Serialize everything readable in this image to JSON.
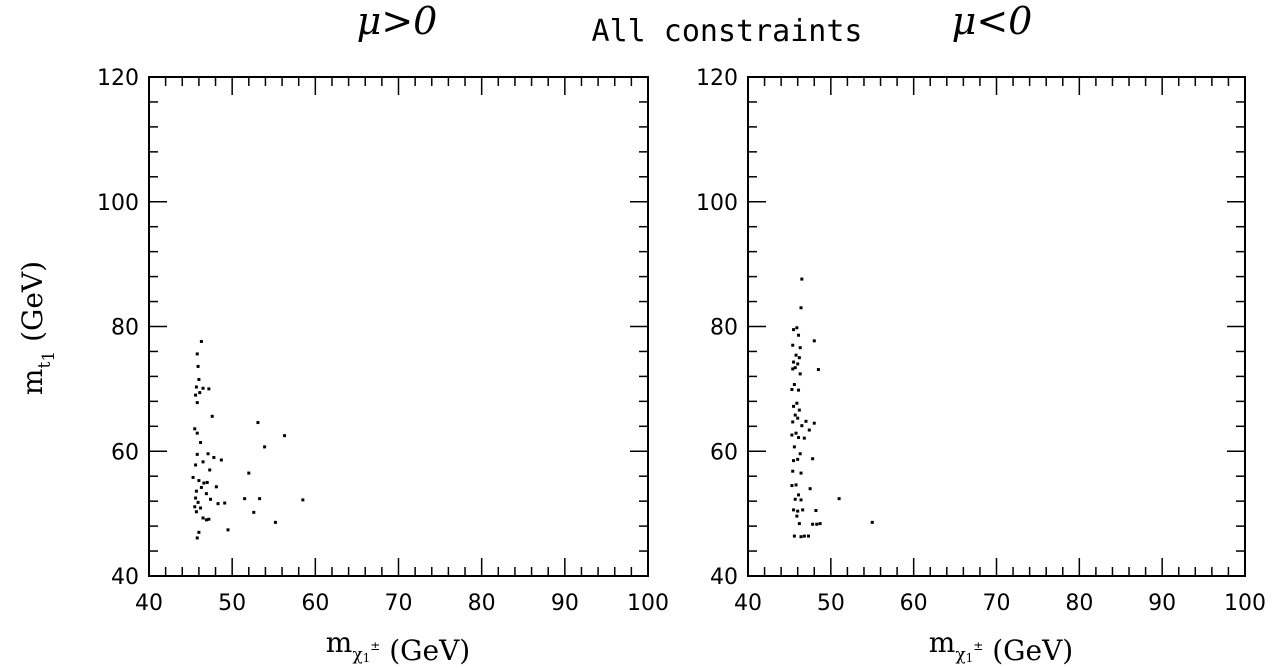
{
  "figure_title": "All constraints",
  "chart_data": [
    {
      "type": "scatter",
      "title": "μ>0",
      "xlabel": "m_χ1± (GeV)",
      "ylabel": "m_t1 (GeV)",
      "xlim": [
        40,
        100
      ],
      "ylim": [
        40,
        120
      ],
      "xticks": [
        "40",
        "50",
        "60",
        "70",
        "80",
        "90",
        "100"
      ],
      "yticks": [
        "40",
        "60",
        "80",
        "100",
        "120"
      ],
      "grid": false,
      "points": [
        [
          46.3,
          77.6
        ],
        [
          45.8,
          75.6
        ],
        [
          45.9,
          73.6
        ],
        [
          46.0,
          71.5
        ],
        [
          45.7,
          70.3
        ],
        [
          46.5,
          70.1
        ],
        [
          47.2,
          70.0
        ],
        [
          45.6,
          69.0
        ],
        [
          46.1,
          69.4
        ],
        [
          45.8,
          67.8
        ],
        [
          47.6,
          65.6
        ],
        [
          45.5,
          63.6
        ],
        [
          45.8,
          62.9
        ],
        [
          46.2,
          61.4
        ],
        [
          53.1,
          64.6
        ],
        [
          56.3,
          62.5
        ],
        [
          53.9,
          60.7
        ],
        [
          45.8,
          59.5
        ],
        [
          47.1,
          59.6
        ],
        [
          47.8,
          59.0
        ],
        [
          48.7,
          58.6
        ],
        [
          46.5,
          58.3
        ],
        [
          45.6,
          57.8
        ],
        [
          47.3,
          57.0
        ],
        [
          52.0,
          56.5
        ],
        [
          45.3,
          55.8
        ],
        [
          46.0,
          55.3
        ],
        [
          46.6,
          54.9
        ],
        [
          47.0,
          55.0
        ],
        [
          48.1,
          54.3
        ],
        [
          46.3,
          54.2
        ],
        [
          45.7,
          53.6
        ],
        [
          46.9,
          53.2
        ],
        [
          45.6,
          52.5
        ],
        [
          47.4,
          52.3
        ],
        [
          51.5,
          52.4
        ],
        [
          53.3,
          52.4
        ],
        [
          58.5,
          52.2
        ],
        [
          45.9,
          51.8
        ],
        [
          48.3,
          51.6
        ],
        [
          49.1,
          51.7
        ],
        [
          45.5,
          51.1
        ],
        [
          46.2,
          50.9
        ],
        [
          45.7,
          50.3
        ],
        [
          52.6,
          50.2
        ],
        [
          46.5,
          49.3
        ],
        [
          46.9,
          49.0
        ],
        [
          47.2,
          49.1
        ],
        [
          55.2,
          48.6
        ],
        [
          49.5,
          47.4
        ],
        [
          46.0,
          47.0
        ],
        [
          45.8,
          46.1
        ]
      ]
    },
    {
      "type": "scatter",
      "title": "μ<0",
      "xlabel": "m_χ1± (GeV)",
      "ylabel": "",
      "xlim": [
        40,
        100
      ],
      "ylim": [
        40,
        120
      ],
      "xticks": [
        "40",
        "50",
        "60",
        "70",
        "80",
        "90",
        "100"
      ],
      "yticks": [
        "40",
        "60",
        "80",
        "100",
        "120"
      ],
      "grid": false,
      "points": [
        [
          46.5,
          87.6
        ],
        [
          46.4,
          83.0
        ],
        [
          45.9,
          79.8
        ],
        [
          45.5,
          79.5
        ],
        [
          46.1,
          78.6
        ],
        [
          48.0,
          77.7
        ],
        [
          45.4,
          77.0
        ],
        [
          46.3,
          76.6
        ],
        [
          45.8,
          75.4
        ],
        [
          46.2,
          75.0
        ],
        [
          45.5,
          74.3
        ],
        [
          46.0,
          74.0
        ],
        [
          45.7,
          73.4
        ],
        [
          45.4,
          73.2
        ],
        [
          48.5,
          73.1
        ],
        [
          46.3,
          72.4
        ],
        [
          45.6,
          70.7
        ],
        [
          46.1,
          69.8
        ],
        [
          45.3,
          69.9
        ],
        [
          45.9,
          67.7
        ],
        [
          45.5,
          67.2
        ],
        [
          46.2,
          66.6
        ],
        [
          45.7,
          65.8
        ],
        [
          46.0,
          65.3
        ],
        [
          47.0,
          64.8
        ],
        [
          48.0,
          64.5
        ],
        [
          45.4,
          64.7
        ],
        [
          46.5,
          64.1
        ],
        [
          47.4,
          63.4
        ],
        [
          45.8,
          62.9
        ],
        [
          45.3,
          62.6
        ],
        [
          46.1,
          62.2
        ],
        [
          46.8,
          62.1
        ],
        [
          45.6,
          60.7
        ],
        [
          46.3,
          59.6
        ],
        [
          45.5,
          58.5
        ],
        [
          46.0,
          58.7
        ],
        [
          47.8,
          58.8
        ],
        [
          45.4,
          56.8
        ],
        [
          46.4,
          56.5
        ],
        [
          45.8,
          54.6
        ],
        [
          45.3,
          54.5
        ],
        [
          46.1,
          53.0
        ],
        [
          47.5,
          54.0
        ],
        [
          45.7,
          52.3
        ],
        [
          46.4,
          52.2
        ],
        [
          51.0,
          52.4
        ],
        [
          45.5,
          50.6
        ],
        [
          46.0,
          50.4
        ],
        [
          46.6,
          50.6
        ],
        [
          48.2,
          50.5
        ],
        [
          45.9,
          49.6
        ],
        [
          46.2,
          48.4
        ],
        [
          47.8,
          48.3
        ],
        [
          48.3,
          48.3
        ],
        [
          48.7,
          48.4
        ],
        [
          55.0,
          48.6
        ],
        [
          45.6,
          46.4
        ],
        [
          46.4,
          46.3
        ],
        [
          46.8,
          46.4
        ],
        [
          47.3,
          46.4
        ]
      ]
    }
  ]
}
